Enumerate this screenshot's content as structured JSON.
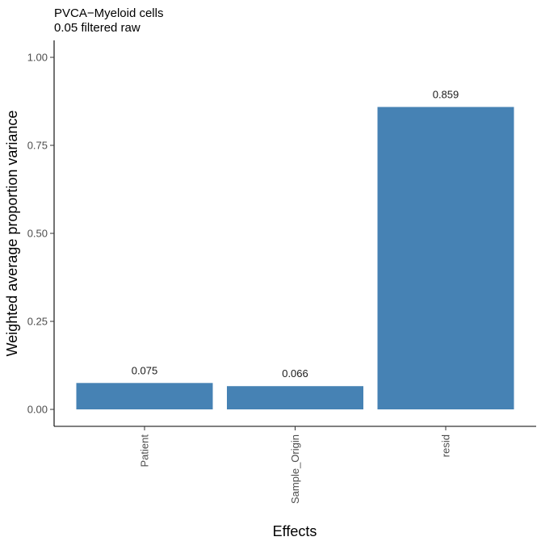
{
  "chart_data": {
    "type": "bar",
    "title": "PVCA−Myeloid cells",
    "subtitle": "0.05 filtered raw",
    "xlabel": "Effects",
    "ylabel": "Weighted average proportion variance",
    "categories": [
      "Patient",
      "Sample_Origin",
      "resid"
    ],
    "values": [
      0.075,
      0.066,
      0.859
    ],
    "data_labels": [
      "0.075",
      "0.066",
      "0.859"
    ],
    "ylim": [
      0,
      1
    ],
    "yticks": [
      0,
      0.25,
      0.5,
      0.75,
      1
    ],
    "ytick_labels": [
      "0.00",
      "0.25",
      "0.50",
      "0.75",
      "1.00"
    ],
    "bar_color": "#4682b4",
    "grid": false,
    "legend": "none"
  }
}
